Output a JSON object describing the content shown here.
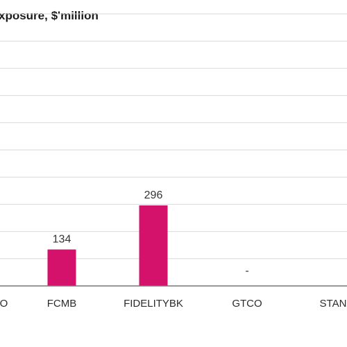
{
  "chart_data": {
    "type": "bar",
    "title": "xposure, $'million",
    "categories": [
      "CO",
      "FCMB",
      "FIDELITYBK",
      "GTCO",
      "STANE",
      ""
    ],
    "values": [
      null,
      134,
      296,
      null,
      null,
      null
    ],
    "value_labels": [
      "",
      "134",
      "296",
      "-",
      "",
      "-"
    ],
    "ylim": [
      0,
      1000
    ],
    "grid": true,
    "bar_color": "#d4116b"
  }
}
